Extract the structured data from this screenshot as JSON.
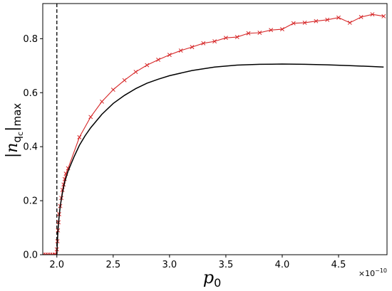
{
  "chart_data": {
    "type": "line",
    "xlabel_main": "p",
    "xlabel_sub": "0",
    "ylabel_left": "|n",
    "ylabel_q": "q",
    "ylabel_c": "c",
    "ylabel_right": "|",
    "ylabel_max": "max",
    "x_multiplier_base": "×10",
    "x_multiplier_exp": "−10",
    "xlim": [
      1.875,
      4.93
    ],
    "ylim": [
      0,
      0.93
    ],
    "xticks": [
      2.0,
      2.5,
      3.0,
      3.5,
      4.0,
      4.5
    ],
    "xtick_labels": [
      "2.0",
      "2.5",
      "3.0",
      "3.5",
      "4.0",
      "4.5"
    ],
    "yticks": [
      0.0,
      0.2,
      0.4,
      0.6,
      0.8
    ],
    "ytick_labels": [
      "0.0",
      "0.2",
      "0.4",
      "0.6",
      "0.8"
    ],
    "vline_x": 2.0,
    "grid": false,
    "series": [
      {
        "marker": "x",
        "color": "#d62728",
        "x": [
          1.88,
          1.9,
          1.92,
          1.94,
          1.96,
          1.98,
          1.99,
          2.0,
          2.005,
          2.01,
          2.015,
          2.02,
          2.03,
          2.04,
          2.05,
          2.06,
          2.07,
          2.08,
          2.1,
          2.2,
          2.3,
          2.4,
          2.5,
          2.6,
          2.7,
          2.8,
          2.9,
          3.0,
          3.1,
          3.2,
          3.3,
          3.4,
          3.5,
          3.6,
          3.7,
          3.8,
          3.9,
          4.0,
          4.1,
          4.2,
          4.3,
          4.4,
          4.5,
          4.6,
          4.7,
          4.8,
          4.9
        ],
        "y": [
          0.0,
          0.0,
          0.0,
          0.0,
          0.0,
          0.0,
          0.0,
          0.02,
          0.05,
          0.09,
          0.12,
          0.15,
          0.18,
          0.21,
          0.24,
          0.26,
          0.28,
          0.3,
          0.32,
          0.435,
          0.51,
          0.567,
          0.611,
          0.646,
          0.677,
          0.702,
          0.722,
          0.74,
          0.756,
          0.769,
          0.783,
          0.79,
          0.803,
          0.806,
          0.82,
          0.822,
          0.832,
          0.835,
          0.857,
          0.859,
          0.865,
          0.87,
          0.878,
          0.859,
          0.88,
          0.89,
          0.883
        ]
      },
      {
        "marker": "none",
        "color": "#000000",
        "x": [
          2.0,
          2.005,
          2.01,
          2.02,
          2.03,
          2.05,
          2.07,
          2.1,
          2.15,
          2.2,
          2.25,
          2.3,
          2.4,
          2.5,
          2.6,
          2.7,
          2.8,
          2.9,
          3.0,
          3.2,
          3.4,
          3.6,
          3.8,
          4.0,
          4.2,
          4.4,
          4.6,
          4.8,
          4.9
        ],
        "y": [
          0.0,
          0.05,
          0.09,
          0.14,
          0.18,
          0.23,
          0.27,
          0.31,
          0.36,
          0.405,
          0.44,
          0.47,
          0.52,
          0.56,
          0.59,
          0.615,
          0.635,
          0.65,
          0.663,
          0.682,
          0.695,
          0.702,
          0.705,
          0.706,
          0.705,
          0.703,
          0.7,
          0.697,
          0.695
        ]
      }
    ]
  }
}
